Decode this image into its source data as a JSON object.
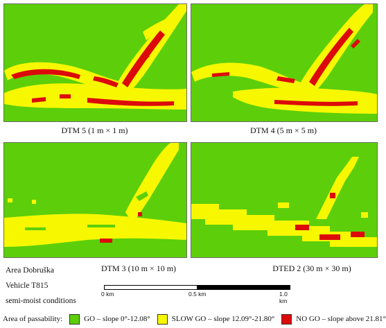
{
  "colors": {
    "go": "#5ccf0a",
    "slow": "#f7f700",
    "nogo": "#dc0a0a",
    "frame": "#6a6a6a"
  },
  "panels": [
    {
      "caption": "DTM 5 (1 m × 1 m)"
    },
    {
      "caption": "DTM 4 (5 m × 5 m)"
    },
    {
      "caption": "DTM 3 (10 m × 10 m)"
    },
    {
      "caption": "DTED 2 (30 m × 30 m)"
    }
  ],
  "info": {
    "area": "Area Dobruška",
    "vehicle": "Vehicle T815",
    "conditions": "semi-moist conditions"
  },
  "scale_bar": {
    "labels": [
      "0 km",
      "0.5 km",
      "1.0 km"
    ]
  },
  "legend": {
    "title": "Area of passability:",
    "items": [
      {
        "label": "GO – slope 0°-12.08°",
        "color": "#5ccf0a"
      },
      {
        "label": "SLOW GO – slope 12.09°-21.80°",
        "color": "#f7f700"
      },
      {
        "label": "NO GO – slope above 21.81°",
        "color": "#dc0a0a"
      }
    ]
  }
}
